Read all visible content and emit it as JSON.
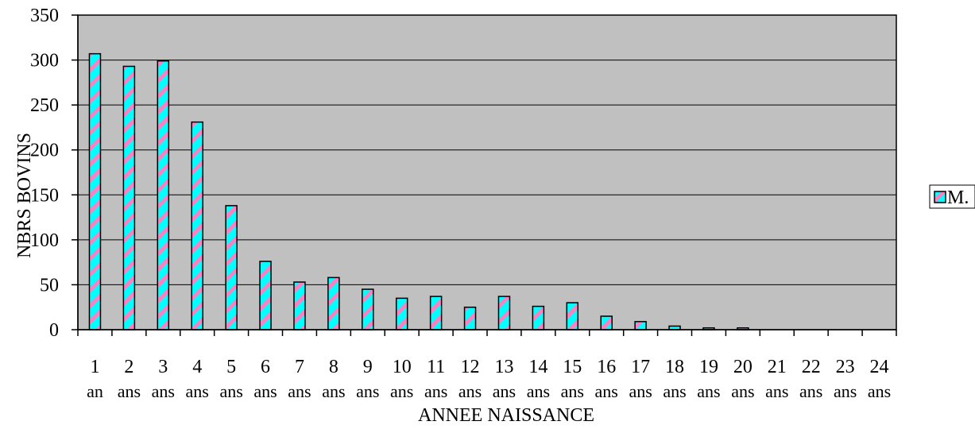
{
  "chart_data": {
    "type": "bar",
    "title": "",
    "xlabel": "ANNEE NAISSANCE",
    "ylabel": "NBRS BOVINS",
    "ylim": [
      0,
      350
    ],
    "yticks": [
      0,
      50,
      100,
      150,
      200,
      250,
      300,
      350
    ],
    "grid": true,
    "legend_position": "right",
    "categories": [
      "1",
      "2",
      "3",
      "4",
      "5",
      "6",
      "7",
      "8",
      "9",
      "10",
      "11",
      "12",
      "13",
      "14",
      "15",
      "16",
      "17",
      "18",
      "19",
      "20",
      "21",
      "22",
      "23",
      "24"
    ],
    "category_units": [
      "an",
      "ans",
      "ans",
      "ans",
      "ans",
      "ans",
      "ans",
      "ans",
      "ans",
      "ans",
      "ans",
      "ans",
      "ans",
      "ans",
      "ans",
      "ans",
      "ans",
      "ans",
      "ans",
      "ans",
      "ans",
      "ans",
      "ans",
      "ans"
    ],
    "series": [
      {
        "name": "M.",
        "values": [
          307,
          293,
          299,
          231,
          138,
          76,
          53,
          58,
          45,
          35,
          37,
          25,
          37,
          26,
          30,
          15,
          9,
          4,
          2,
          2,
          0,
          0,
          0,
          0
        ]
      }
    ],
    "colors": {
      "plot_background": "#c0c0c0",
      "bar_fill": "#00ffff",
      "bar_stripe": "#ff80c0",
      "bar_outline": "#000000"
    }
  }
}
